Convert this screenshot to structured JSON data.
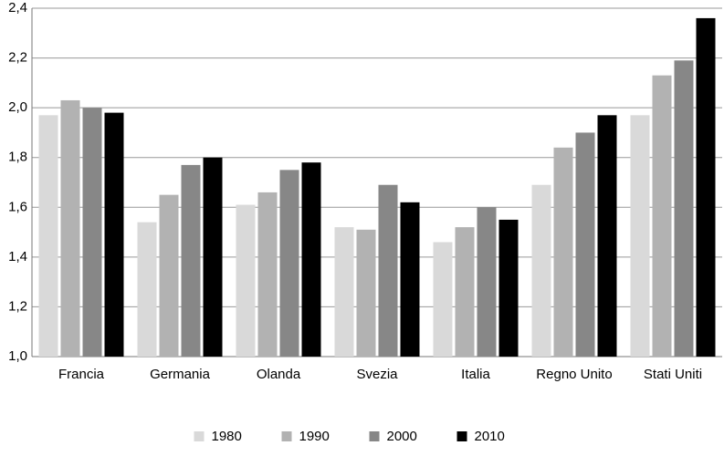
{
  "chart_data": {
    "type": "bar",
    "categories": [
      "Francia",
      "Germania",
      "Olanda",
      "Svezia",
      "Italia",
      "Regno Unito",
      "Stati Uniti"
    ],
    "series": [
      {
        "name": "1980",
        "color": "#d9d9d9",
        "values": [
          1.97,
          1.54,
          1.61,
          1.52,
          1.46,
          1.69,
          1.97
        ]
      },
      {
        "name": "1990",
        "color": "#b2b2b2",
        "values": [
          2.03,
          1.65,
          1.66,
          1.51,
          1.52,
          1.84,
          2.13
        ]
      },
      {
        "name": "2000",
        "color": "#878787",
        "values": [
          2.0,
          1.77,
          1.75,
          1.69,
          1.6,
          1.9,
          2.19
        ]
      },
      {
        "name": "2010",
        "color": "#000000",
        "values": [
          1.98,
          1.8,
          1.78,
          1.62,
          1.55,
          1.97,
          2.36
        ]
      }
    ],
    "ylim": [
      1.0,
      2.4
    ],
    "yticks": [
      {
        "value": 1.0,
        "label": "1,0"
      },
      {
        "value": 1.2,
        "label": "1,2"
      },
      {
        "value": 1.4,
        "label": "1,4"
      },
      {
        "value": 1.6,
        "label": "1,6"
      },
      {
        "value": 1.8,
        "label": "1,8"
      },
      {
        "value": 2.0,
        "label": "2,0"
      },
      {
        "value": 2.2,
        "label": "2,2"
      },
      {
        "value": 2.4,
        "label": "2,4"
      }
    ],
    "grid": true,
    "legend": "bottom"
  }
}
